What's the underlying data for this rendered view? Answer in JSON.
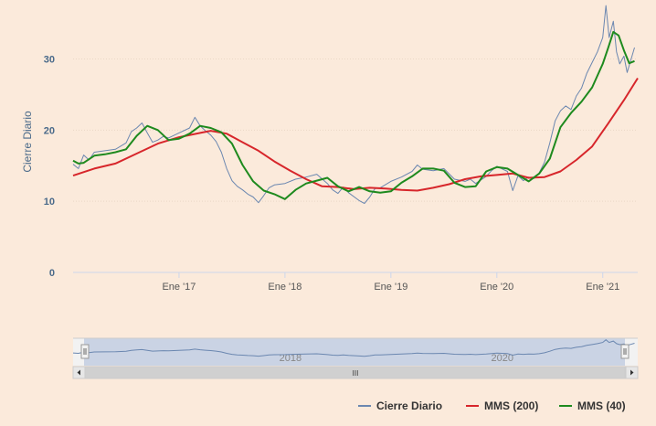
{
  "chart_data": {
    "type": "line",
    "ylabel": "Cierre Diario",
    "yticks": [
      0,
      10,
      20,
      30
    ],
    "ylim": [
      0,
      37
    ],
    "xticks": [
      {
        "label": "Ene '17",
        "t": 2017
      },
      {
        "label": "Ene '18",
        "t": 2018
      },
      {
        "label": "Ene '19",
        "t": 2019
      },
      {
        "label": "Ene '20",
        "t": 2020
      },
      {
        "label": "Ene '21",
        "t": 2021
      }
    ],
    "xlim": [
      2016.0,
      2021.33
    ],
    "grid": true,
    "legend": "bottom-right",
    "series": [
      {
        "name": "Cierre Diario",
        "color": "#6b87b0",
        "x": [
          2016.0,
          2016.05,
          2016.1,
          2016.15,
          2016.2,
          2016.3,
          2016.4,
          2016.5,
          2016.55,
          2016.6,
          2016.65,
          2016.7,
          2016.75,
          2016.8,
          2016.85,
          2016.9,
          2017.0,
          2017.1,
          2017.15,
          2017.2,
          2017.25,
          2017.3,
          2017.35,
          2017.4,
          2017.45,
          2017.5,
          2017.55,
          2017.6,
          2017.65,
          2017.7,
          2017.75,
          2017.8,
          2017.85,
          2017.9,
          2018.0,
          2018.1,
          2018.2,
          2018.3,
          2018.4,
          2018.45,
          2018.5,
          2018.55,
          2018.6,
          2018.7,
          2018.75,
          2018.8,
          2018.85,
          2018.9,
          2019.0,
          2019.1,
          2019.2,
          2019.25,
          2019.3,
          2019.4,
          2019.5,
          2019.6,
          2019.7,
          2019.75,
          2019.8,
          2019.9,
          2019.95,
          2020.0,
          2020.1,
          2020.15,
          2020.2,
          2020.25,
          2020.3,
          2020.35,
          2020.4,
          2020.45,
          2020.5,
          2020.55,
          2020.6,
          2020.65,
          2020.7,
          2020.75,
          2020.8,
          2020.85,
          2020.9,
          2020.95,
          2021.0,
          2021.03,
          2021.06,
          2021.1,
          2021.13,
          2021.16,
          2021.2,
          2021.23,
          2021.26,
          2021.3
        ],
        "values": [
          15.2,
          14.6,
          16.5,
          15.8,
          16.9,
          17.1,
          17.3,
          18.2,
          19.8,
          20.3,
          21.0,
          19.6,
          18.3,
          18.6,
          19.1,
          18.9,
          19.6,
          20.3,
          21.8,
          20.6,
          19.9,
          19.3,
          18.4,
          16.9,
          14.6,
          12.9,
          12.1,
          11.6,
          11.0,
          10.6,
          9.8,
          10.8,
          11.9,
          12.3,
          12.5,
          13.1,
          13.4,
          13.8,
          12.5,
          11.6,
          11.1,
          12.0,
          11.2,
          10.1,
          9.7,
          10.6,
          11.8,
          11.9,
          12.8,
          13.4,
          14.2,
          15.1,
          14.5,
          14.3,
          14.6,
          13.1,
          12.8,
          13.1,
          12.5,
          13.5,
          14.3,
          14.9,
          14.2,
          11.5,
          13.6,
          12.9,
          13.4,
          13.2,
          14.0,
          15.5,
          18.2,
          21.3,
          22.7,
          23.4,
          22.9,
          24.8,
          25.9,
          28.0,
          29.5,
          31.0,
          33.0,
          37.5,
          33.0,
          35.3,
          31.0,
          29.3,
          30.4,
          28.1,
          29.6,
          31.6
        ]
      },
      {
        "name": "MMS (200)",
        "color": "#d7262b",
        "x": [
          2016.0,
          2016.2,
          2016.4,
          2016.6,
          2016.8,
          2017.0,
          2017.2,
          2017.3,
          2017.45,
          2017.6,
          2017.75,
          2017.9,
          2018.05,
          2018.2,
          2018.35,
          2018.5,
          2018.65,
          2018.8,
          2018.95,
          2019.1,
          2019.25,
          2019.4,
          2019.55,
          2019.7,
          2019.85,
          2020.0,
          2020.15,
          2020.3,
          2020.45,
          2020.6,
          2020.75,
          2020.9,
          2021.05,
          2021.2,
          2021.33
        ],
        "values": [
          13.6,
          14.6,
          15.3,
          16.7,
          18.1,
          19.0,
          19.6,
          19.9,
          19.5,
          18.3,
          17.1,
          15.6,
          14.3,
          13.1,
          12.1,
          12.0,
          11.7,
          11.9,
          11.8,
          11.6,
          11.5,
          11.9,
          12.4,
          13.1,
          13.5,
          13.7,
          13.9,
          13.3,
          13.4,
          14.2,
          15.8,
          17.7,
          20.9,
          24.2,
          27.3
        ]
      },
      {
        "name": "MMS (40)",
        "color": "#1e8a1e",
        "x": [
          2016.0,
          2016.05,
          2016.1,
          2016.2,
          2016.3,
          2016.4,
          2016.5,
          2016.6,
          2016.7,
          2016.8,
          2016.9,
          2017.0,
          2017.1,
          2017.2,
          2017.3,
          2017.4,
          2017.5,
          2017.6,
          2017.7,
          2017.8,
          2017.9,
          2018.0,
          2018.1,
          2018.2,
          2018.3,
          2018.4,
          2018.5,
          2018.6,
          2018.7,
          2018.8,
          2018.9,
          2019.0,
          2019.1,
          2019.2,
          2019.3,
          2019.4,
          2019.5,
          2019.6,
          2019.7,
          2019.8,
          2019.9,
          2020.0,
          2020.1,
          2020.2,
          2020.3,
          2020.4,
          2020.5,
          2020.6,
          2020.7,
          2020.8,
          2020.9,
          2021.0,
          2021.05,
          2021.1,
          2021.15,
          2021.2,
          2021.25,
          2021.3
        ],
        "values": [
          15.7,
          15.3,
          15.4,
          16.4,
          16.6,
          16.9,
          17.3,
          19.2,
          20.6,
          20.0,
          18.6,
          18.8,
          19.5,
          20.6,
          20.3,
          19.7,
          18.1,
          15.1,
          12.8,
          11.5,
          11.0,
          10.3,
          11.6,
          12.5,
          12.9,
          13.3,
          12.1,
          11.4,
          12.0,
          11.4,
          11.2,
          11.4,
          12.6,
          13.5,
          14.6,
          14.6,
          14.3,
          12.6,
          12.0,
          12.1,
          14.2,
          14.8,
          14.6,
          13.7,
          12.8,
          13.9,
          16.0,
          20.4,
          22.4,
          24.0,
          26.0,
          29.3,
          31.5,
          33.8,
          33.3,
          31.2,
          29.4,
          29.7
        ]
      }
    ]
  },
  "navigator": {
    "labels": [
      {
        "label": "2018",
        "t": 2018
      },
      {
        "label": "2020",
        "t": 2020
      }
    ],
    "scroll_grip": "III"
  }
}
